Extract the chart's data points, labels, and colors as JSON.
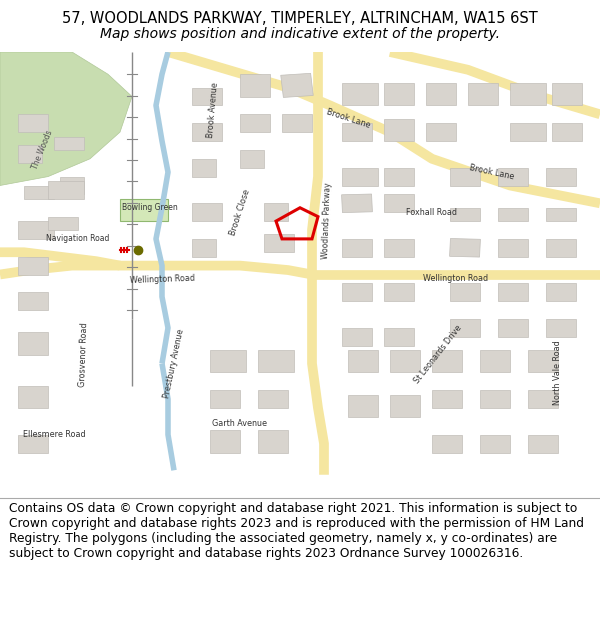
{
  "title_line1": "57, WOODLANDS PARKWAY, TIMPERLEY, ALTRINCHAM, WA15 6ST",
  "title_line2": "Map shows position and indicative extent of the property.",
  "footer_text": "Contains OS data © Crown copyright and database right 2021. This information is subject to Crown copyright and database rights 2023 and is reproduced with the permission of HM Land Registry. The polygons (including the associated geometry, namely x, y co-ordinates) are subject to Crown copyright and database rights 2023 Ordnance Survey 100026316.",
  "title_fontsize": 10.5,
  "footer_fontsize": 8.8,
  "map_bg_color": "#f2f0ed",
  "title_bg_color": "#ffffff",
  "footer_bg_color": "#ffffff",
  "fig_width": 6.0,
  "fig_height": 6.25,
  "road_major_color": "#f5e6a0",
  "road_minor_color": "#ffffff",
  "building_color": "#d8d4ce",
  "building_edge_color": "#c0bdb8",
  "water_color": "#a8cce0",
  "green_color": "#c8ddb0",
  "green2_color": "#d4e8b8",
  "highlight_color": "#dd0000",
  "marker_color": "#6b6b00",
  "railway_color": "#dd0000",
  "road_edge_color": "#e8d878",
  "label_color": "#333333"
}
